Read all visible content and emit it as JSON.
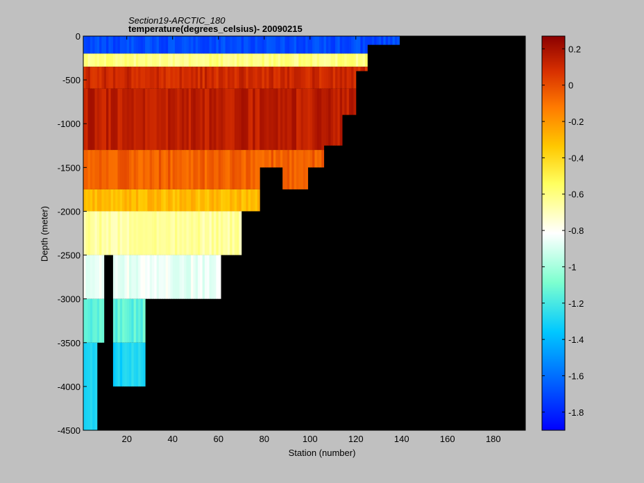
{
  "chart_data": {
    "type": "heatmap",
    "title": "Section19-ARCTIC_180",
    "subtitle": "temperature(degrees_celsius)- 20090215",
    "xlabel": "Station (number)",
    "ylabel": "Depth (meter)",
    "xlim": [
      1,
      194
    ],
    "ylim": [
      -4500,
      0
    ],
    "x_ticks": [
      "20",
      "40",
      "60",
      "80",
      "100",
      "120",
      "140",
      "160",
      "180"
    ],
    "y_ticks": [
      "0",
      "-500",
      "-1000",
      "-1500",
      "-2000",
      "-2500",
      "-3000",
      "-3500",
      "-4000",
      "-4500"
    ],
    "colorbar": {
      "range": [
        -1.9,
        0.27
      ],
      "ticks": [
        "0.2",
        "0",
        "-0.2",
        "-0.4",
        "-0.6",
        "-0.8",
        "-1",
        "-1.2",
        "-1.4",
        "-1.6",
        "-1.8"
      ],
      "colormap": "jet"
    },
    "depth_profile_approx": [
      {
        "layer": "0 to -200 m",
        "temperature_c": -1.7
      },
      {
        "layer": "-200 to -350 m",
        "temperature_c": -0.6
      },
      {
        "layer": "-350 to -600 m",
        "temperature_c": 0.1
      },
      {
        "layer": "-600 to -1300 m",
        "temperature_c": 0.15
      },
      {
        "layer": "-1300 to -1750 m",
        "temperature_c": -0.05
      },
      {
        "layer": "-1750 to -2000 m",
        "temperature_c": -0.3
      },
      {
        "layer": "-2000 to -2500 m",
        "temperature_c": -0.65
      },
      {
        "layer": "-2500 to -3000 m",
        "temperature_c": -0.85
      },
      {
        "layer": "-3000 to -3500 m",
        "temperature_c": -1.15
      },
      {
        "layer": "-3500 to -4500 m",
        "temperature_c": -1.3
      }
    ],
    "bottom_depth_approx": [
      {
        "station": 1,
        "depth": -4500
      },
      {
        "station": 6,
        "depth": -4500
      },
      {
        "station": 7,
        "depth": -3500
      },
      {
        "station": 12,
        "depth": -2500
      },
      {
        "station": 15,
        "depth": -4000
      },
      {
        "station": 20,
        "depth": -4000
      },
      {
        "station": 34,
        "depth": -3000
      },
      {
        "station": 56,
        "depth": -3000
      },
      {
        "station": 64,
        "depth": -2500
      },
      {
        "station": 75,
        "depth": -2000
      },
      {
        "station": 80,
        "depth": -1500
      },
      {
        "station": 94,
        "depth": -1750
      },
      {
        "station": 103,
        "depth": -1500
      },
      {
        "station": 108,
        "depth": -1250
      },
      {
        "station": 118,
        "depth": -900
      },
      {
        "station": 121,
        "depth": -400
      },
      {
        "station": 128,
        "depth": -100
      },
      {
        "station": 148,
        "depth": 0
      },
      {
        "station": 194,
        "depth": 0
      }
    ]
  }
}
